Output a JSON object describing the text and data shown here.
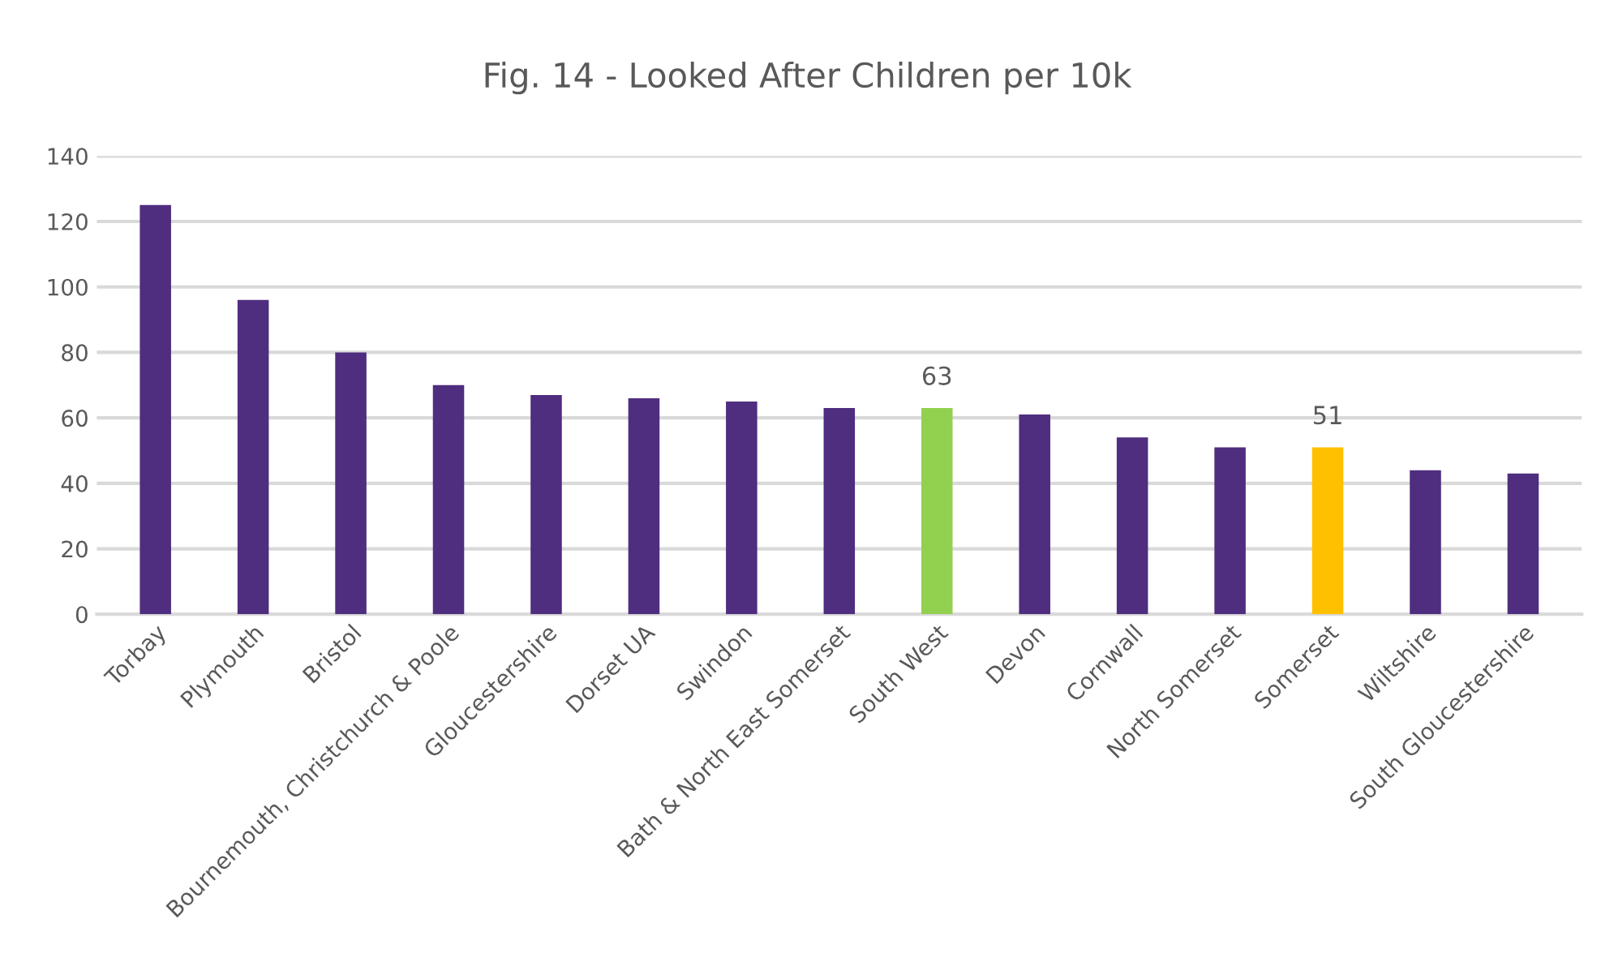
{
  "chart_data": {
    "type": "bar",
    "title": "Fig. 14 - Looked After Children per 10k",
    "categories": [
      "Torbay",
      "Plymouth",
      "Bristol",
      "Bournemouth, Christchurch & Poole",
      "Gloucestershire",
      "Dorset UA",
      "Swindon",
      "Bath & North East Somerset",
      "South West",
      "Devon",
      "Cornwall",
      "North Somerset",
      "Somerset",
      "Wiltshire",
      "South Gloucestershire"
    ],
    "values": [
      125,
      96,
      80,
      70,
      67,
      66,
      65,
      63,
      63,
      61,
      54,
      51,
      51,
      44,
      43
    ],
    "colors": [
      "#4f2d7f",
      "#4f2d7f",
      "#4f2d7f",
      "#4f2d7f",
      "#4f2d7f",
      "#4f2d7f",
      "#4f2d7f",
      "#4f2d7f",
      "#92d050",
      "#4f2d7f",
      "#4f2d7f",
      "#4f2d7f",
      "#ffc000",
      "#4f2d7f",
      "#4f2d7f"
    ],
    "value_labels": [
      null,
      null,
      null,
      null,
      null,
      null,
      null,
      null,
      "63",
      null,
      null,
      null,
      "51",
      null,
      null
    ],
    "ylim": [
      0,
      140
    ],
    "yticks": [
      0,
      20,
      40,
      60,
      80,
      100,
      120,
      140
    ],
    "grid": "y"
  }
}
